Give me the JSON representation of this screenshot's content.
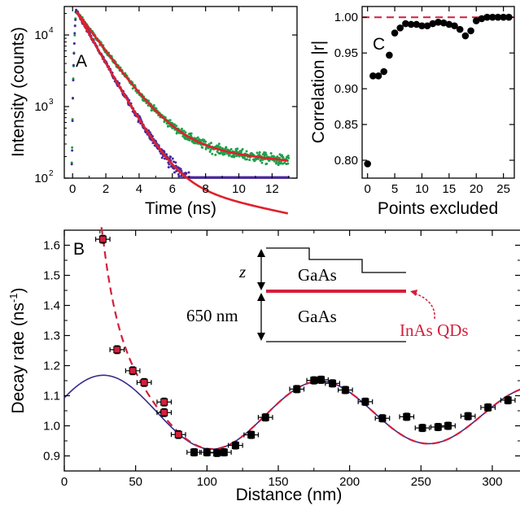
{
  "chart_data": [
    {
      "panel": "A",
      "type": "line",
      "xlabel": "Time (ns)",
      "ylabel": "Intensity (counts)",
      "xlim": [
        -0.5,
        13.5
      ],
      "ylim": [
        100,
        25000
      ],
      "yscale": "log",
      "x_ticks": [
        "0",
        "2",
        "4",
        "6",
        "8",
        "10",
        "12"
      ],
      "y_ticks": [
        {
          "base": "10",
          "exp": "2"
        },
        {
          "base": "10",
          "exp": "3"
        },
        {
          "base": "10",
          "exp": "4"
        }
      ],
      "series": [
        {
          "role": "data",
          "color": "#1fa04a",
          "peak": 22000,
          "tau1": 1.35,
          "w1": 0.985,
          "tau2": 20.0,
          "start": 0.2,
          "end": 13.0
        },
        {
          "role": "data",
          "color": "#4b2a9a",
          "peak": 22000,
          "tau1": 1.05,
          "w1": 0.994,
          "tau2": 9.0,
          "start": 0.2,
          "end": 13.0
        },
        {
          "role": "fit",
          "color": "#e0202a",
          "peak": 22000,
          "tau1": 1.35,
          "w1": 0.985,
          "tau2": 20.0,
          "start": 0.25,
          "end": 13.0
        },
        {
          "role": "fit",
          "color": "#e0202a",
          "peak": 22000,
          "tau1": 1.05,
          "w1": 0.994,
          "tau2": 9.0,
          "start": 0.25,
          "end": 13.0
        }
      ]
    },
    {
      "panel": "C",
      "type": "scatter",
      "xlabel": "Points excluded",
      "ylabel": "Correlation |r|",
      "xlim": [
        -1,
        27
      ],
      "ylim": [
        0.775,
        1.015
      ],
      "x_ticks": [
        "0",
        "5",
        "10",
        "15",
        "20",
        "25"
      ],
      "y_ticks": [
        "0.80",
        "0.85",
        "0.90",
        "0.95",
        "1.00"
      ],
      "reference_line": 1.0,
      "x": [
        0,
        1,
        2,
        3,
        4,
        5,
        6,
        7,
        8,
        9,
        10,
        11,
        12,
        13,
        14,
        15,
        16,
        17,
        18,
        19,
        20,
        21,
        22,
        23,
        24,
        25,
        26
      ],
      "y": [
        0.795,
        0.918,
        0.918,
        0.924,
        0.947,
        0.978,
        0.985,
        0.991,
        0.99,
        0.99,
        0.988,
        0.988,
        0.991,
        0.993,
        0.992,
        0.99,
        0.988,
        0.983,
        0.974,
        0.981,
        0.995,
        0.998,
        1.0,
        1.0,
        1.0,
        1.0,
        1.0
      ]
    },
    {
      "panel": "B",
      "type": "scatter",
      "xlabel": "Distance (nm)",
      "ylabel": "Decay rate (ns",
      "ylabel_sup": "-1",
      "ylabel_tail": ")",
      "xlim": [
        0,
        320
      ],
      "ylim": [
        0.85,
        1.65
      ],
      "x_ticks": [
        "0",
        "50",
        "100",
        "150",
        "200",
        "250",
        "300"
      ],
      "y_ticks": [
        "0.9",
        "1.0",
        "1.1",
        "1.2",
        "1.3",
        "1.4",
        "1.5",
        "1.6"
      ],
      "red_points": {
        "x": [
          27,
          37,
          48,
          56,
          70,
          70,
          80
        ],
        "y": [
          1.62,
          1.253,
          1.183,
          1.144,
          1.079,
          1.044,
          0.971
        ],
        "xerr": 5,
        "yerr": 0.013
      },
      "black_points": {
        "x": [
          91,
          100,
          107,
          112,
          120,
          131,
          141,
          163,
          175,
          180,
          188,
          197,
          211,
          223,
          240,
          251,
          262,
          269,
          283,
          297,
          311
        ],
        "y": [
          0.912,
          0.912,
          0.91,
          0.912,
          0.935,
          0.97,
          1.028,
          1.122,
          1.151,
          1.153,
          1.141,
          1.119,
          1.08,
          1.025,
          1.03,
          0.993,
          0.996,
          1.0,
          1.032,
          1.061,
          1.085
        ],
        "xerr": 5,
        "yerr": 0.012
      },
      "curve_blue": {
        "color": "#3a2a8a"
      },
      "curve_red": {
        "color": "#d21f3c"
      },
      "inset": {
        "z_label": "z",
        "distance_label": "650 nm",
        "layer_top": "GaAs",
        "layer_bottom": "GaAs",
        "qd_label": "InAs QDs"
      }
    }
  ]
}
